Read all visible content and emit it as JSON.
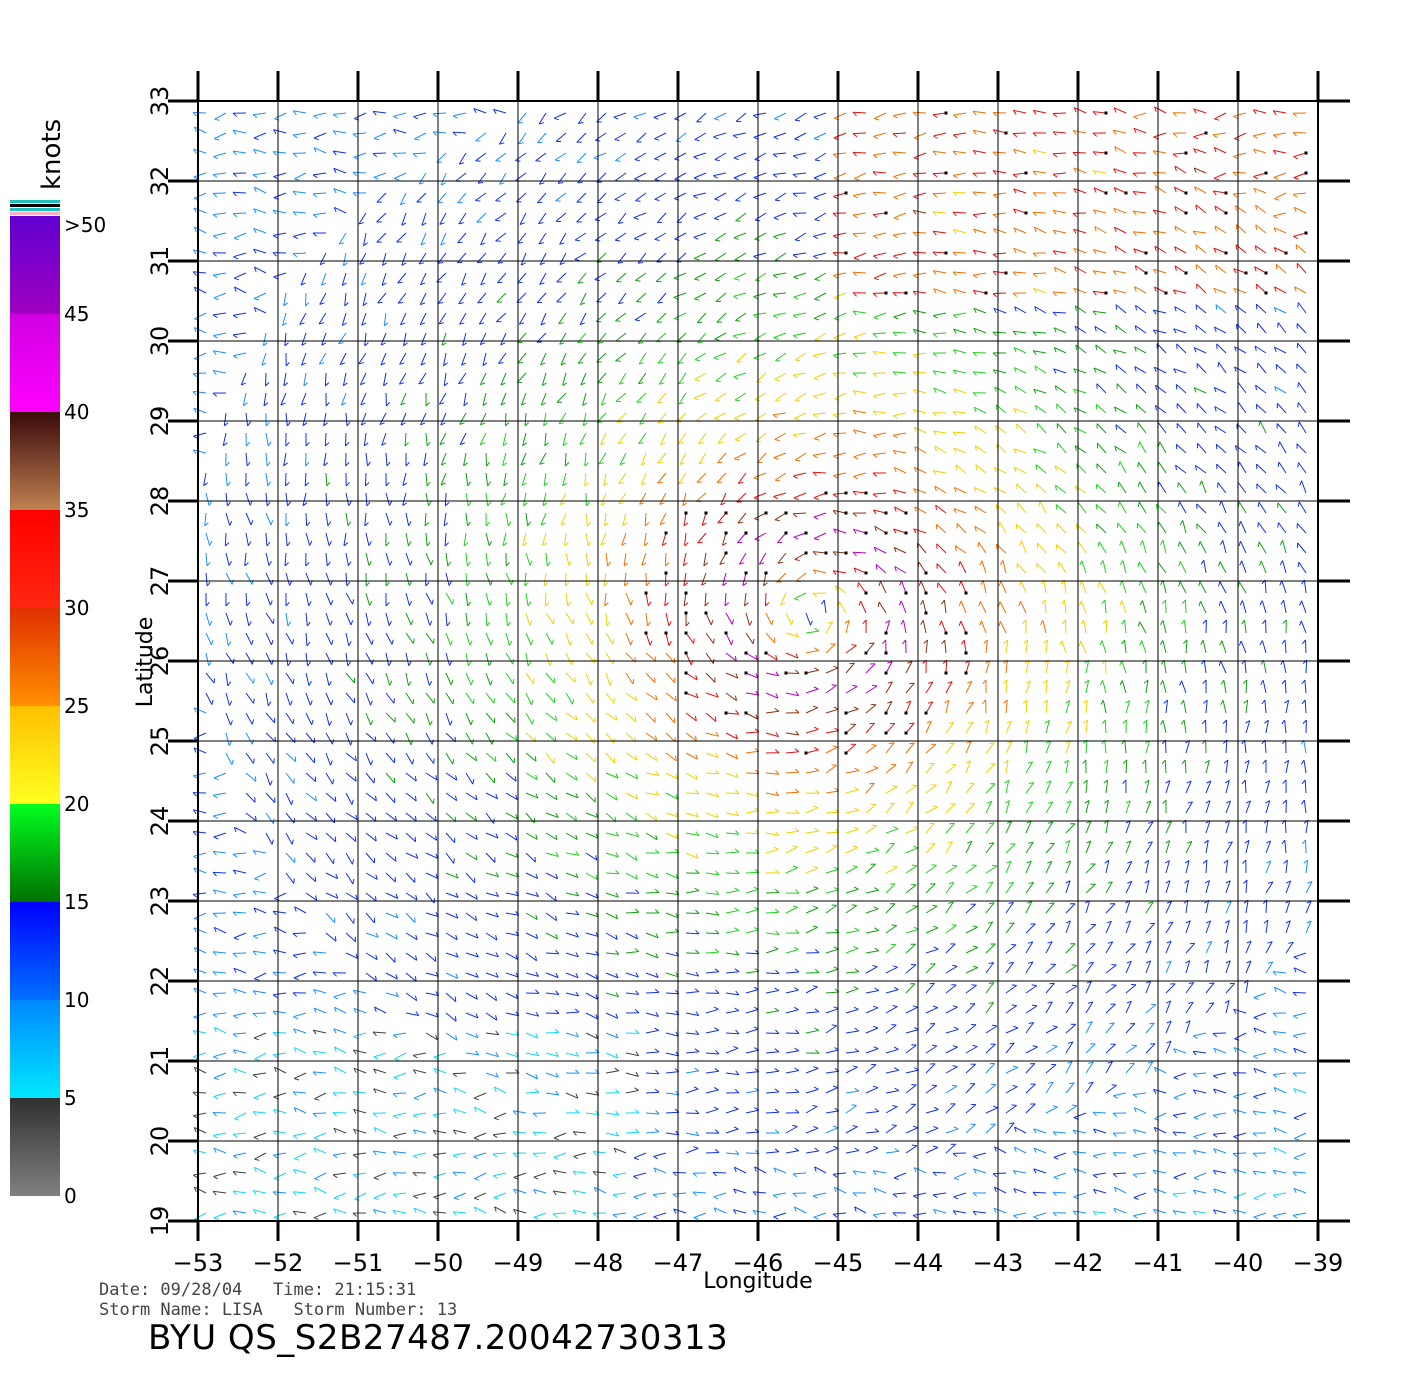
{
  "map": {
    "x_label": "Longitude",
    "y_label": "Latitude",
    "lon_ticks": [
      "−53",
      "−52",
      "−51",
      "−50",
      "−49",
      "−48",
      "−47",
      "−46",
      "−45",
      "−44",
      "−43",
      "−42",
      "−41",
      "−40",
      "−39"
    ],
    "lat_ticks": [
      "19",
      "20",
      "21",
      "22",
      "23",
      "24",
      "25",
      "26",
      "27",
      "28",
      "29",
      "30",
      "31",
      "32",
      "33"
    ],
    "lon_range": [
      -53,
      -39
    ],
    "lat_range": [
      19,
      33
    ],
    "storm_center": {
      "lon": -45.3,
      "lat": 26.6
    }
  },
  "colorbar": {
    "unit": "knots",
    "labels": [
      ">50",
      "45",
      "40",
      "35",
      "30",
      "25",
      "20",
      "15",
      "10",
      "5",
      "0"
    ],
    "bands": [
      {
        "from": 0,
        "to": 5,
        "colors": [
          "#808080",
          "#303030"
        ]
      },
      {
        "from": 5,
        "to": 10,
        "colors": [
          "#00e8ff",
          "#0088ff"
        ]
      },
      {
        "from": 10,
        "to": 15,
        "colors": [
          "#0070ff",
          "#0000ff"
        ]
      },
      {
        "from": 15,
        "to": 20,
        "colors": [
          "#007000",
          "#00ff20"
        ]
      },
      {
        "from": 20,
        "to": 25,
        "colors": [
          "#ffff20",
          "#ffc000"
        ]
      },
      {
        "from": 25,
        "to": 30,
        "colors": [
          "#ff9000",
          "#e03000"
        ]
      },
      {
        "from": 30,
        "to": 35,
        "colors": [
          "#ff2810",
          "#ff0000"
        ]
      },
      {
        "from": 35,
        "to": 40,
        "colors": [
          "#c08050",
          "#3a0a0a"
        ]
      },
      {
        "from": 40,
        "to": 45,
        "colors": [
          "#ff00ff",
          "#d000e0"
        ]
      },
      {
        "from": 45,
        "to": 50,
        "colors": [
          "#a000c0",
          "#6000d0"
        ]
      }
    ],
    "top_stripes": [
      "#ffb0c0",
      "#20c0c0",
      "#000000",
      "#20c0c0"
    ]
  },
  "footer": {
    "date_line": "Date: 09/28/04   Time: 21:15:31",
    "storm_line": "Storm Name: LISA   Storm Number: 13",
    "title": "BYU QS_S2B27487.20042730313"
  }
}
